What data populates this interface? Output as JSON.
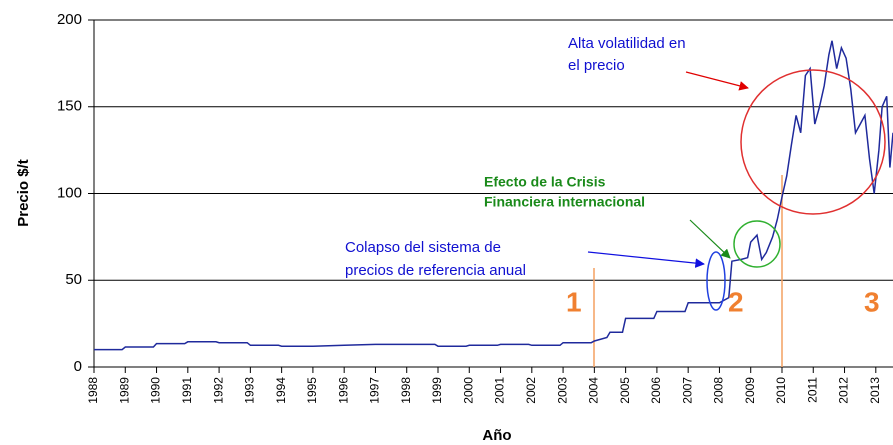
{
  "chart_data": {
    "type": "line",
    "y_label": "Precio $/t",
    "x_label": "Año",
    "xlim": [
      1988,
      2013.55
    ],
    "ylim": [
      0,
      200
    ],
    "xticks": [
      1988,
      1989,
      1990,
      1991,
      1992,
      1993,
      1994,
      1995,
      1996,
      1997,
      1998,
      1999,
      2000,
      2001,
      2002,
      2003,
      2004,
      2005,
      2006,
      2007,
      2008,
      2009,
      2010,
      2011,
      2012,
      2013
    ],
    "yticks": [
      0,
      50,
      100,
      150,
      200
    ],
    "grid": true,
    "series": [
      {
        "color": "#1f2a9c",
        "x": [
          1988,
          1988.9,
          1989,
          1989.9,
          1990,
          1990.9,
          1991,
          1991.9,
          1992,
          1992.9,
          1993,
          1993.9,
          1994,
          1995,
          1996,
          1997,
          1998,
          1998.9,
          1999,
          1999.9,
          2000,
          2000.9,
          2001,
          2001.9,
          2002,
          2002.9,
          2003,
          2003.9,
          2004,
          2004.4,
          2004.5,
          2004.9,
          2005,
          2005.9,
          2006,
          2006.9,
          2007,
          2007.9,
          2008,
          2008.3,
          2008.4,
          2008.7,
          2008.9,
          2009,
          2009.2,
          2009.35,
          2009.5,
          2009.7,
          2009.85,
          2010,
          2010.15,
          2010.3,
          2010.45,
          2010.6,
          2010.75,
          2010.9,
          2011.05,
          2011.2,
          2011.35,
          2011.5,
          2011.6,
          2011.75,
          2011.9,
          2012.05,
          2012.2,
          2012.35,
          2012.5,
          2012.65,
          2012.8,
          2012.95,
          2013.1,
          2013.2,
          2013.35,
          2013.45,
          2013.55
        ],
        "values": [
          10,
          10,
          11.5,
          11.5,
          13.5,
          13.5,
          14.5,
          14.5,
          14,
          14,
          12.5,
          12.5,
          12,
          12,
          12.5,
          13,
          13,
          13,
          12,
          12,
          12.5,
          12.5,
          13,
          13,
          12.5,
          12.5,
          14,
          14,
          15,
          17,
          20,
          20,
          28,
          28,
          32,
          32,
          37,
          37,
          37,
          40,
          61,
          62,
          63,
          72,
          76,
          62,
          66,
          75,
          85,
          98,
          110,
          128,
          145,
          135,
          168,
          172,
          140,
          150,
          162,
          180,
          188,
          172,
          184,
          178,
          160,
          135,
          140,
          145,
          120,
          100,
          125,
          150,
          156,
          115,
          135
        ]
      }
    ],
    "annotations": [
      "Alta volatilidad en",
      "el precio",
      "Efecto de la Crisis",
      "Financiera internacional",
      "Colapso del sistema de",
      "precios de referencia anual",
      "1",
      "2",
      "3"
    ]
  }
}
